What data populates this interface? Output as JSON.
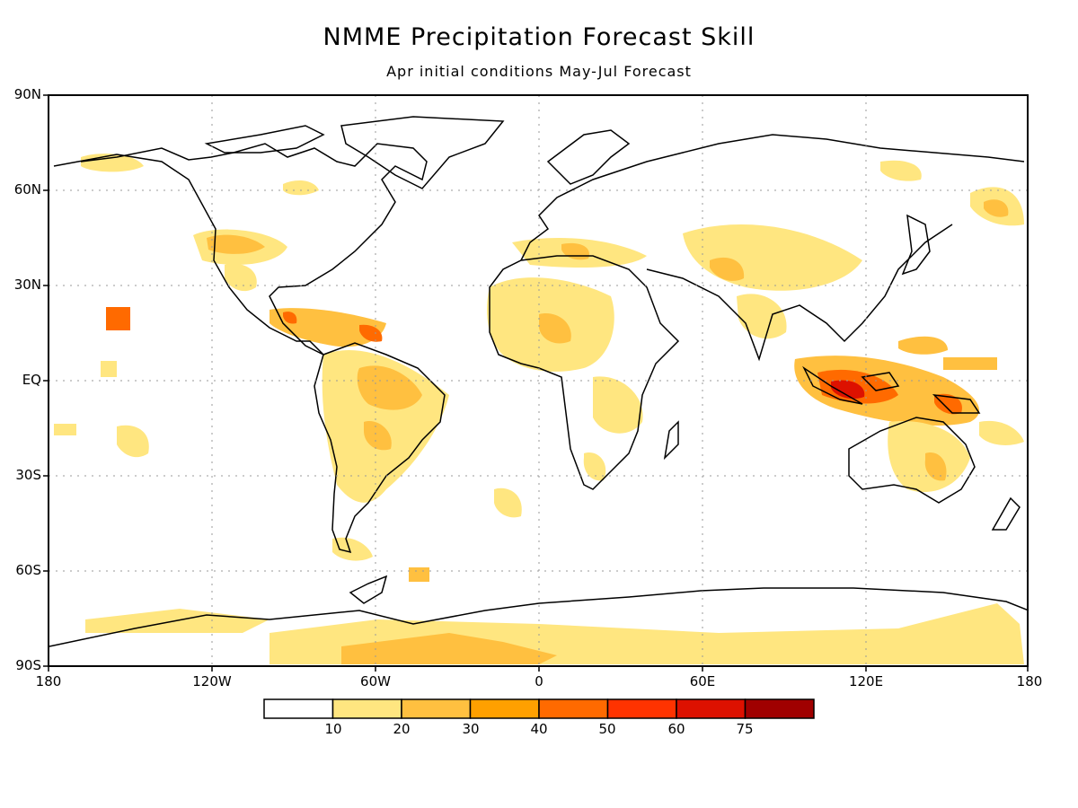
{
  "title": "NMME Precipitation Forecast Skill",
  "subtitle": "Apr initial conditions   May-Jul Forecast",
  "lat_labels": [
    "90N",
    "60N",
    "30N",
    "EQ",
    "30S",
    "60S",
    "90S"
  ],
  "lon_labels": [
    "180",
    "120W",
    "60W",
    "0",
    "60E",
    "120E",
    "180"
  ],
  "colorbar": {
    "labels": [
      "10",
      "20",
      "30",
      "40",
      "50",
      "60",
      "75"
    ],
    "colors": [
      "#ffffff",
      "#ffe680",
      "#ffc040",
      "#ffa000",
      "#ff6a00",
      "#ff3300",
      "#dd1100",
      "#a00000"
    ]
  },
  "colors": {
    "land_outline": "#000000",
    "grid": "#999999"
  },
  "icons": {
    "map": "world-map-outline"
  }
}
